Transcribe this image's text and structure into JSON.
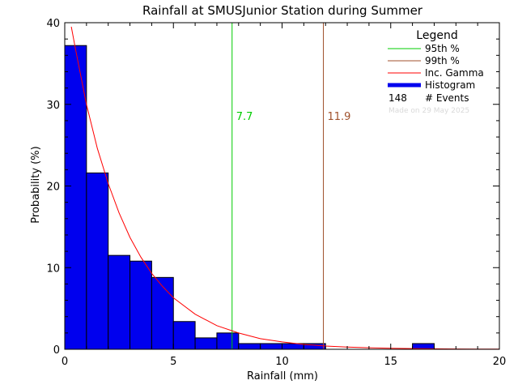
{
  "chart_data": {
    "type": "bar",
    "title": "Rainfall at SMUSJunior Station during Summer",
    "xlabel": "Rainfall (mm)",
    "ylabel": "Probability (%)",
    "xlim": [
      0,
      20
    ],
    "ylim": [
      0,
      40
    ],
    "x_ticks": [
      0,
      5,
      10,
      15,
      20
    ],
    "y_ticks": [
      0,
      10,
      20,
      30,
      40
    ],
    "bin_width": 1,
    "histogram": [
      {
        "x0": 0,
        "x1": 1,
        "y": 37.2
      },
      {
        "x0": 1,
        "x1": 2,
        "y": 21.6
      },
      {
        "x0": 2,
        "x1": 3,
        "y": 11.5
      },
      {
        "x0": 3,
        "x1": 4,
        "y": 10.8
      },
      {
        "x0": 4,
        "x1": 5,
        "y": 8.8
      },
      {
        "x0": 5,
        "x1": 6,
        "y": 3.4
      },
      {
        "x0": 6,
        "x1": 7,
        "y": 1.4
      },
      {
        "x0": 7,
        "x1": 8,
        "y": 2.0
      },
      {
        "x0": 8,
        "x1": 9,
        "y": 0.7
      },
      {
        "x0": 9,
        "x1": 10,
        "y": 0.7
      },
      {
        "x0": 10,
        "x1": 11,
        "y": 0.7
      },
      {
        "x0": 11,
        "x1": 12,
        "y": 0.7
      },
      {
        "x0": 16,
        "x1": 17,
        "y": 0.7
      }
    ],
    "gamma_curve": {
      "x": [
        0.3,
        0.5,
        1,
        1.5,
        2,
        2.5,
        3,
        3.5,
        4,
        4.5,
        5,
        6,
        7,
        8,
        9,
        10,
        11,
        12,
        13,
        14,
        15,
        16,
        17,
        18,
        19,
        20
      ],
      "y": [
        39.5,
        36.7,
        30.0,
        24.6,
        20.3,
        16.7,
        13.7,
        11.3,
        9.3,
        7.7,
        6.3,
        4.3,
        2.9,
        2.0,
        1.3,
        0.9,
        0.6,
        0.4,
        0.28,
        0.19,
        0.13,
        0.09,
        0.06,
        0.04,
        0.03,
        0.02
      ]
    },
    "percentile_lines": [
      {
        "name": "95th %",
        "x": 7.7,
        "label": "7.7",
        "color": "#00cc00"
      },
      {
        "name": "99th %",
        "x": 11.9,
        "label": "11.9",
        "color": "#a0522d"
      }
    ],
    "colors": {
      "histogram_fill": "#0000ee",
      "gamma": "#ff0000",
      "axis": "#000000"
    },
    "legend": {
      "title": "Legend",
      "placement": "top-right",
      "entries": [
        {
          "key": "p95",
          "label": "95th %",
          "color": "#00cc00"
        },
        {
          "key": "p99",
          "label": "99th %",
          "color": "#a0522d"
        },
        {
          "key": "gamma",
          "label": "Inc. Gamma",
          "color": "#ff0000"
        },
        {
          "key": "hist",
          "label": "Histogram",
          "color": "#0000ee"
        }
      ],
      "events_count": "148",
      "events_label": "# Events",
      "made_on": "Made on 29 May 2025"
    }
  }
}
